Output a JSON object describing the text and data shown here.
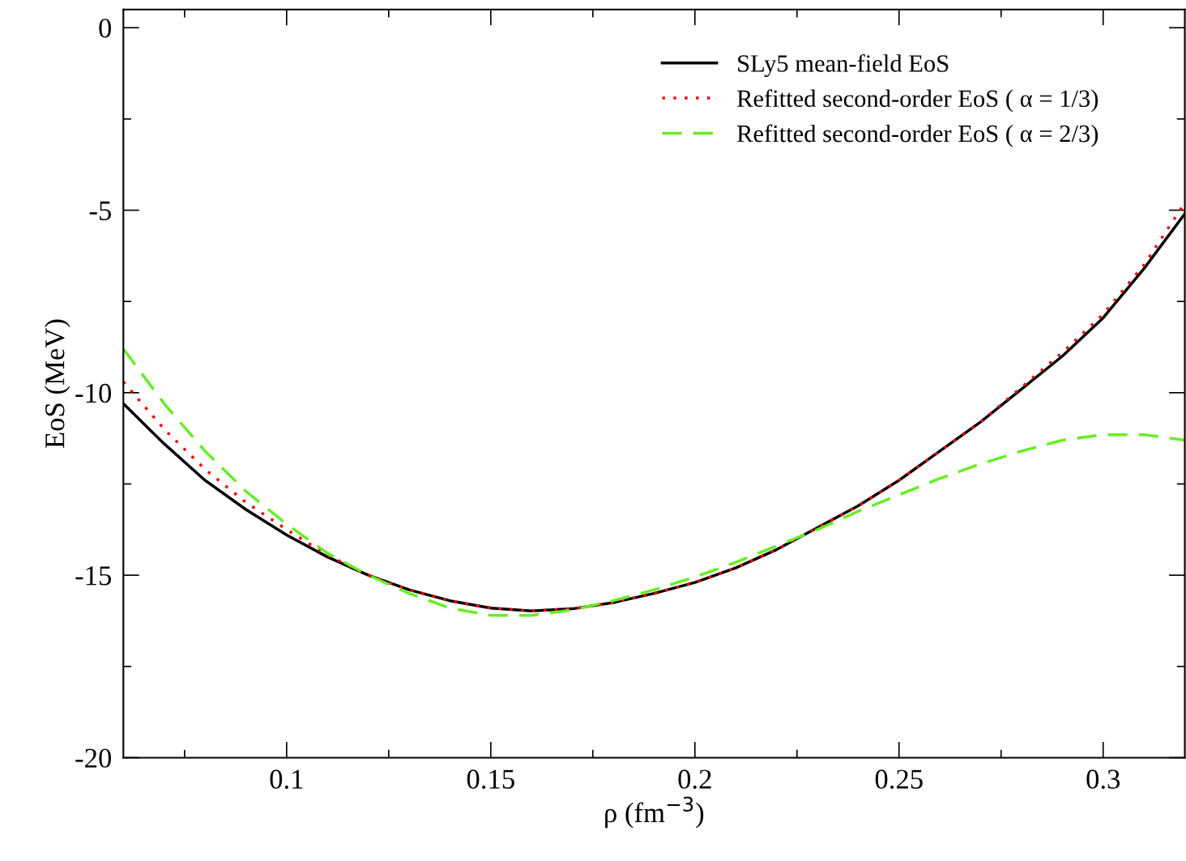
{
  "chart_data": {
    "type": "line",
    "xlabel": "ρ (fm$^{−3}$)",
    "ylabel": "EoS (MeV)",
    "xlim": [
      0.06,
      0.32
    ],
    "ylim": [
      -20,
      0.5
    ],
    "xticks": [
      0.1,
      0.15,
      0.2,
      0.25,
      0.3
    ],
    "yticks": [
      -20,
      -15,
      -10,
      -5,
      0
    ],
    "grid": false,
    "legend": "top right",
    "x": [
      0.06,
      0.07,
      0.08,
      0.09,
      0.1,
      0.11,
      0.12,
      0.13,
      0.14,
      0.15,
      0.16,
      0.17,
      0.18,
      0.19,
      0.2,
      0.21,
      0.22,
      0.23,
      0.24,
      0.25,
      0.26,
      0.27,
      0.28,
      0.29,
      0.3,
      0.31,
      0.32
    ],
    "series": [
      {
        "name": "SLy5 mean-field EoS",
        "color": "#000000",
        "line_style": "solid",
        "values": [
          -10.3,
          -11.4,
          -12.4,
          -13.2,
          -13.9,
          -14.5,
          -15.0,
          -15.4,
          -15.7,
          -15.9,
          -15.98,
          -15.92,
          -15.75,
          -15.5,
          -15.2,
          -14.8,
          -14.3,
          -13.7,
          -13.1,
          -12.4,
          -11.6,
          -10.8,
          -9.9,
          -9.0,
          -7.95,
          -6.6,
          -5.1
        ]
      },
      {
        "name": "Refitted second-order EoS ( α = 1/3)",
        "color": "#ff0000",
        "line_style": "dotted",
        "values": [
          -9.7,
          -11.0,
          -12.1,
          -13.0,
          -13.75,
          -14.45,
          -15.0,
          -15.4,
          -15.7,
          -15.9,
          -15.98,
          -15.92,
          -15.75,
          -15.5,
          -15.2,
          -14.8,
          -14.3,
          -13.7,
          -13.1,
          -12.4,
          -11.6,
          -10.8,
          -9.85,
          -8.9,
          -7.85,
          -6.5,
          -4.8
        ]
      },
      {
        "name": "Refitted second-order EoS ( α = 2/3)",
        "color": "#66ee22",
        "line_style": "dashed",
        "values": [
          -8.8,
          -10.3,
          -11.6,
          -12.7,
          -13.6,
          -14.4,
          -15.0,
          -15.5,
          -15.9,
          -16.1,
          -16.1,
          -15.95,
          -15.7,
          -15.4,
          -15.05,
          -14.65,
          -14.2,
          -13.75,
          -13.25,
          -12.8,
          -12.35,
          -11.95,
          -11.6,
          -11.3,
          -11.15,
          -11.15,
          -11.3
        ]
      }
    ]
  }
}
